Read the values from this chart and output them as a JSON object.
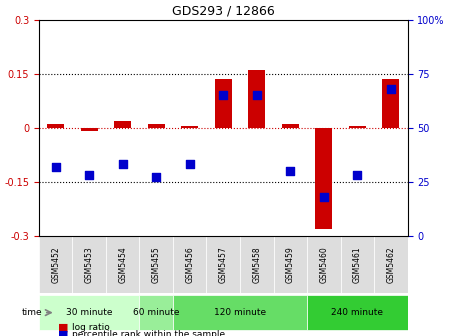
{
  "title": "GDS293 / 12866",
  "samples": [
    "GSM5452",
    "GSM5453",
    "GSM5454",
    "GSM5455",
    "GSM5456",
    "GSM5457",
    "GSM5458",
    "GSM5459",
    "GSM5460",
    "GSM5461",
    "GSM5462"
  ],
  "log_ratio": [
    0.01,
    -0.01,
    0.02,
    0.01,
    0.005,
    0.135,
    0.16,
    0.01,
    -0.28,
    0.005,
    0.135
  ],
  "percentile_rank": [
    32,
    28,
    33,
    27,
    33,
    65,
    65,
    30,
    18,
    28,
    68
  ],
  "ylim_left": [
    -0.3,
    0.3
  ],
  "ylim_right": [
    0,
    100
  ],
  "yticks_left": [
    -0.3,
    -0.15,
    0,
    0.15,
    0.3
  ],
  "yticks_right": [
    0,
    25,
    50,
    75,
    100
  ],
  "dotted_lines": [
    -0.15,
    0.15
  ],
  "zero_line": 0,
  "bar_color": "#cc0000",
  "dot_color": "#0000cc",
  "bg_color": "#ffffff",
  "grid_color": "#000000",
  "time_groups": [
    {
      "label": "30 minute",
      "start": 0,
      "end": 2,
      "color": "#ccffcc"
    },
    {
      "label": "60 minute",
      "start": 3,
      "end": 3,
      "color": "#99ee99"
    },
    {
      "label": "120 minute",
      "start": 4,
      "end": 7,
      "color": "#66dd66"
    },
    {
      "label": "240 minute",
      "start": 8,
      "end": 10,
      "color": "#33cc33"
    }
  ],
  "time_label": "time",
  "legend_log_ratio": "log ratio",
  "legend_percentile": "percentile rank within the sample",
  "bar_width": 0.5
}
